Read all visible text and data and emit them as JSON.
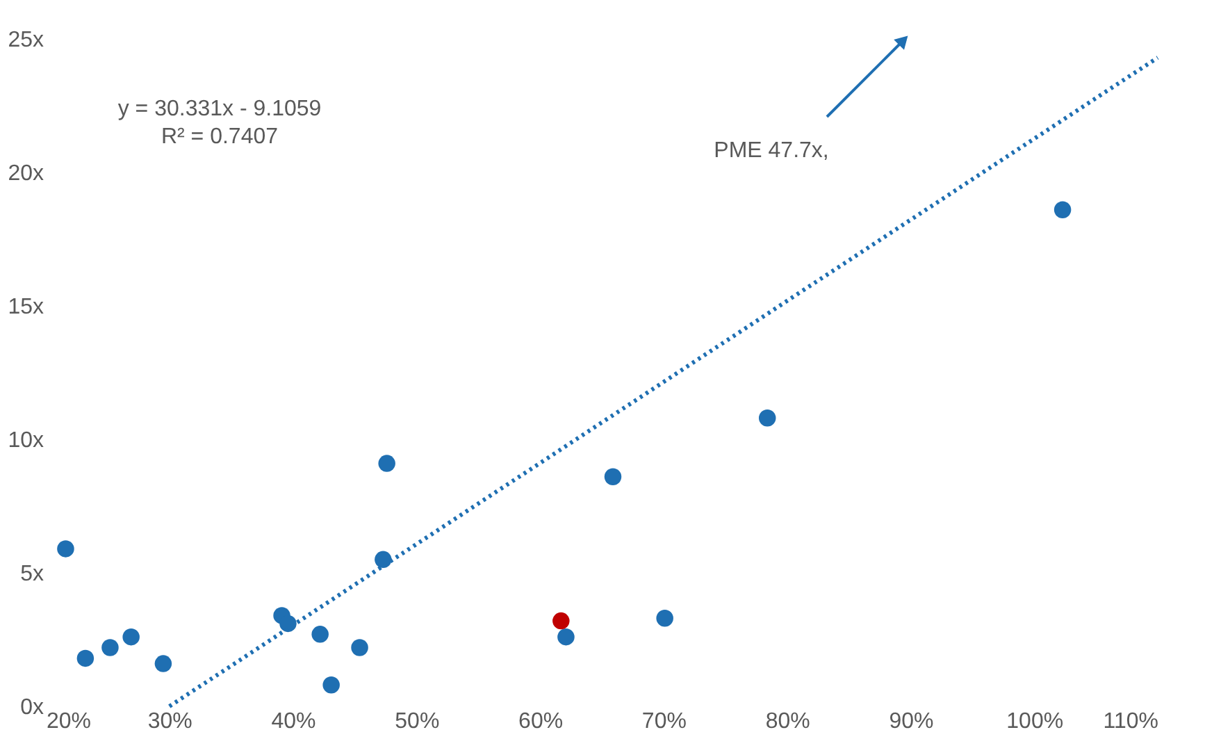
{
  "chart_data": {
    "type": "scatter",
    "xlim": [
      20,
      110
    ],
    "ylim": [
      0,
      25
    ],
    "xticks": [
      {
        "value": 20,
        "label": "20%"
      },
      {
        "value": 30,
        "label": "30%"
      },
      {
        "value": 40,
        "label": "40%"
      },
      {
        "value": 50,
        "label": "50%"
      },
      {
        "value": 60,
        "label": "60%"
      },
      {
        "value": 70,
        "label": "70%"
      },
      {
        "value": 80,
        "label": "80%"
      },
      {
        "value": 90,
        "label": "90%"
      },
      {
        "value": 100,
        "label": "100%"
      },
      {
        "value": 110,
        "label": "110%"
      }
    ],
    "yticks": [
      {
        "value": 0,
        "label": "0x"
      },
      {
        "value": 5,
        "label": "5x"
      },
      {
        "value": 10,
        "label": "10x"
      },
      {
        "value": 15,
        "label": "15x"
      },
      {
        "value": 20,
        "label": "20x"
      },
      {
        "value": 25,
        "label": "25x"
      }
    ],
    "grid": false,
    "series": [
      {
        "marker": "circle",
        "color": "#1f6fb2",
        "x": [
          21.6,
          23.2,
          25.2,
          26.9,
          29.5,
          39.1,
          39.6,
          42.2,
          43.1,
          45.4,
          47.3,
          47.6,
          62.1,
          65.9,
          70.1,
          78.4,
          102.3
        ],
        "values": [
          5.9,
          1.8,
          2.2,
          2.6,
          1.6,
          3.4,
          3.1,
          2.7,
          0.8,
          2.2,
          5.5,
          9.1,
          2.6,
          8.6,
          3.3,
          10.8,
          18.6
        ]
      },
      {
        "marker": "circle",
        "color": "#c00000",
        "x": [
          61.7
        ],
        "values": [
          3.2
        ]
      },
      {
        "type": "line",
        "color": "#1f6fb2",
        "line_style": "dotted",
        "x": [
          30.0,
          110
        ],
        "values": [
          0,
          24.3
        ]
      }
    ],
    "annotations": [
      "y = 30.331x - 9.1059",
      "R² = 0.7407",
      "PME 47.7x,"
    ]
  }
}
